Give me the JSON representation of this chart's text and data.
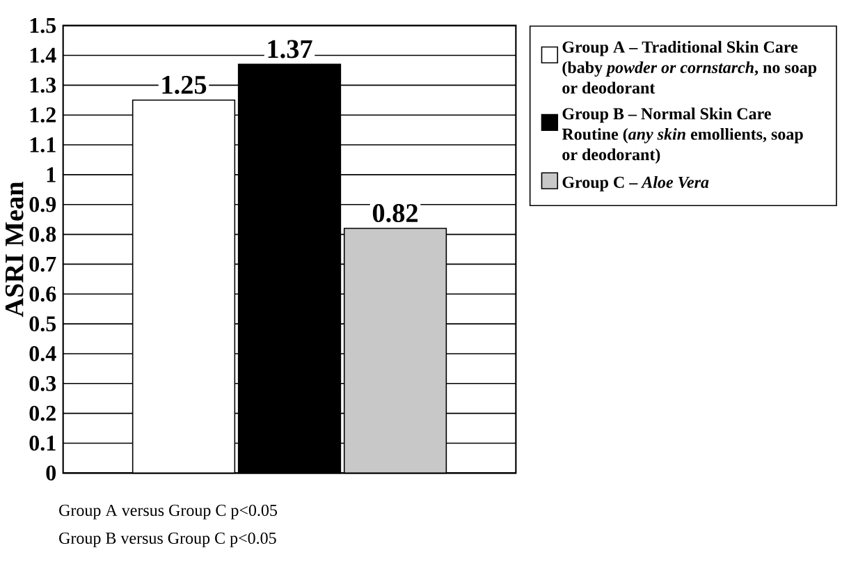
{
  "chart_data": {
    "type": "bar",
    "ylabel": "ASRI Mean",
    "categories": [
      null
    ],
    "series": [
      {
        "name": "Group A – Traditional Skin Care (baby *powder or cornstarch*, no soap or deodorant",
        "color": "#ffffff",
        "values": [
          1.25
        ]
      },
      {
        "name": "Group B – Normal Skin Care Routine (*any skin* emollients, soap or deodorant)",
        "color": "#000000",
        "values": [
          1.37
        ]
      },
      {
        "name": "Group C – *Aloe Vera*",
        "color": "#c8c8c8",
        "values": [
          0.82
        ]
      }
    ],
    "ylim": [
      0,
      1.5
    ],
    "yticks": [
      0,
      0.1,
      0.2,
      0.3,
      0.4,
      0.5,
      0.6,
      0.7,
      0.8,
      0.9,
      1,
      1.1,
      1.2,
      1.3,
      1.4,
      1.5
    ],
    "grid": "y",
    "legend": "right",
    "data_labels": true,
    "annotations": [
      "Group A versus Group C p<0.05",
      "Group B versus Group C p<0.05"
    ]
  }
}
